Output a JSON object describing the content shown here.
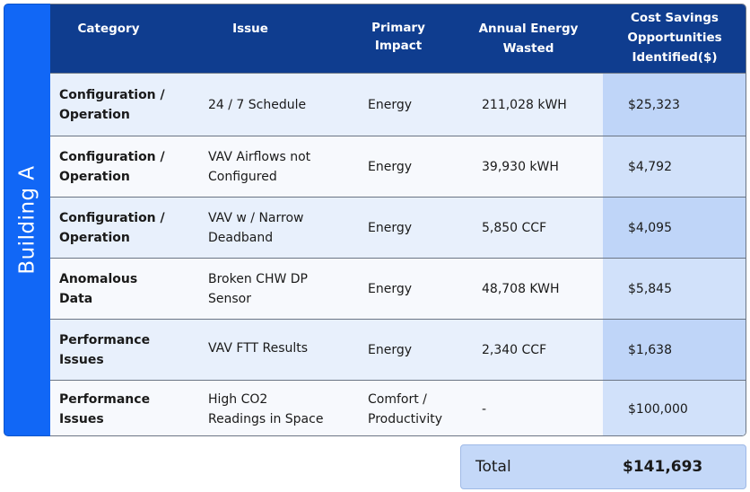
{
  "side_label": "Building A",
  "headers": {
    "category": "Category",
    "issue": "Issue",
    "impact": "Primary\nImpact",
    "energy": "Annual Energy\nWasted",
    "savings": "Cost Savings\nOpportunities\nIdentified($)"
  },
  "rows": [
    {
      "category": "Configuration /\nOperation",
      "issue": "24 / 7 Schedule",
      "impact": "Energy",
      "energy": "211,028 kWH",
      "savings": "$25,323"
    },
    {
      "category": "Configuration /\nOperation",
      "issue": "VAV Airflows not\nConfigured",
      "impact": "Energy",
      "energy": "39,930 kWH",
      "savings": "$4,792"
    },
    {
      "category": "Configuration /\nOperation",
      "issue": "VAV w / Narrow\nDeadband",
      "impact": "Energy",
      "energy": "5,850 CCF",
      "savings": "$4,095"
    },
    {
      "category": "Anomalous\nData",
      "issue": "Broken CHW DP\nSensor",
      "impact": "Energy",
      "energy": "48,708 KWH",
      "savings": "$5,845"
    },
    {
      "category": "Performance\nIssues",
      "issue": "VAV FTT Results",
      "impact": "Energy",
      "energy": "2,340 CCF",
      "savings": "$1,638"
    },
    {
      "category": "Performance\nIssues",
      "issue": "High CO2\nReadings in Space",
      "impact": "Comfort /\nProductivity",
      "energy": "-",
      "savings": "$100,000"
    }
  ],
  "total": {
    "label": "Total",
    "value": "$141,693"
  }
}
